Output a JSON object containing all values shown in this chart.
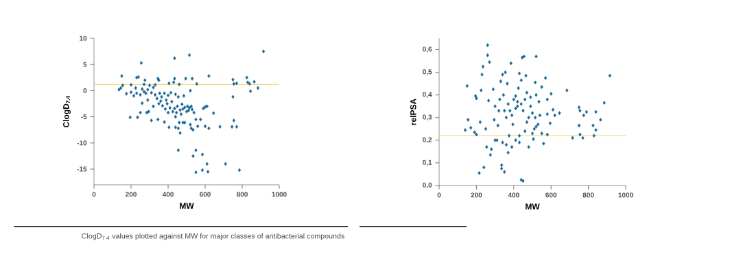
{
  "chart_data": [
    {
      "type": "scatter",
      "xlabel": "MW",
      "ylabel": "ClogD$_{7.4}$",
      "xlim": [
        0,
        1000
      ],
      "ylim": [
        -18,
        10
      ],
      "xticks": [
        0,
        200,
        400,
        600,
        800,
        1000
      ],
      "yticks": [
        -15,
        -10,
        -5,
        0,
        5,
        10
      ],
      "marker": "diamond",
      "color": "#1c6796",
      "x": [
        915,
        515,
        435,
        255,
        620,
        150,
        240,
        230,
        275,
        345,
        350,
        435,
        495,
        530,
        750,
        755,
        770,
        825,
        830,
        865,
        840,
        845,
        885,
        750,
        755,
        745,
        770,
        680,
        645,
        610,
        600,
        590,
        620,
        600,
        575,
        560,
        550,
        540,
        535,
        525,
        520,
        480,
        460,
        455,
        440,
        465,
        405,
        380,
        345,
        310,
        295,
        285,
        250,
        235,
        195,
        455,
        550,
        535,
        585,
        610,
        710,
        550,
        585,
        615,
        785,
        555,
        145,
        135,
        155,
        175,
        200,
        215,
        225,
        230,
        250,
        260,
        270,
        280,
        290,
        300,
        310,
        320,
        330,
        340,
        350,
        355,
        365,
        370,
        380,
        385,
        390,
        395,
        400,
        405,
        410,
        415,
        420,
        425,
        430,
        435,
        440,
        445,
        450,
        455,
        460,
        465,
        470,
        475,
        480,
        485,
        490,
        500,
        505,
        510,
        515,
        520,
        525,
        530,
        260,
        290,
        320,
        330,
        270,
        200,
        440,
        490,
        400,
        360
      ],
      "values": [
        7.5,
        6.8,
        6.2,
        5.3,
        2.8,
        2.8,
        2.6,
        2.5,
        2.0,
        2.3,
        2.0,
        2.3,
        2.3,
        2.3,
        2.1,
        1.3,
        1.4,
        2.5,
        1.6,
        1.7,
        1.3,
        -0.1,
        0.5,
        -1.2,
        -5.7,
        -6.9,
        -6.9,
        -6.9,
        -4.3,
        -3.0,
        -3.1,
        -3.4,
        -7.2,
        -6.8,
        -5.5,
        -6.8,
        -5.5,
        -4.2,
        -7.5,
        -7.2,
        -6.5,
        -6.1,
        -6.1,
        -7.2,
        -7.0,
        -8.1,
        -7.0,
        -6.0,
        -5.5,
        -5.7,
        -4.0,
        -4.2,
        -4.2,
        -5.1,
        -5.1,
        -11.4,
        -11.4,
        -12.5,
        -12.2,
        -14.0,
        -14.0,
        -15.6,
        -15.2,
        -15.5,
        -15.2,
        1.3,
        0.5,
        0.2,
        1.0,
        -0.6,
        -0.3,
        -1.0,
        0.5,
        -0.5,
        -0.8,
        0.3,
        -0.2,
        -0.5,
        0.2,
        1.0,
        -0.4,
        0.6,
        -0.8,
        -1.5,
        -2.5,
        -0.5,
        -1.2,
        -2.9,
        -0.5,
        -3.5,
        -1.8,
        -2.5,
        -0.9,
        1.4,
        -3.3,
        -0.4,
        -2.1,
        -4.0,
        1.6,
        -3.4,
        -0.7,
        -4.2,
        -3.0,
        -1.2,
        1.2,
        -3.7,
        -4.5,
        -2.6,
        -3.5,
        -1.0,
        -3.2,
        -4.0,
        -3.0,
        -3.8,
        -3.3,
        0.0,
        -3.0,
        -3.6,
        -2.4,
        -1.8,
        -3.0,
        1.1,
        1.2,
        1.1,
        -5.0,
        -6.1,
        -4.2,
        -2.0
      ],
      "ref_lines": [
        {
          "axis": "y",
          "value": 1.2,
          "color": "#f0d060"
        }
      ],
      "annotations": [
        "ClogD$_{7.4}$ values plotted against MW for major classes of antibacterial compounds"
      ]
    },
    {
      "type": "scatter",
      "xlabel": "MW",
      "ylabel": "relPSA",
      "xlim": [
        0,
        1000
      ],
      "ylim": [
        0,
        0.65
      ],
      "xticks": [
        0,
        200,
        400,
        600,
        800,
        1000
      ],
      "yticks": [
        {
          "value": 0,
          "label": "0,0"
        },
        {
          "value": 0.1,
          "label": "0,1"
        },
        {
          "value": 0.2,
          "label": "0,2"
        },
        {
          "value": 0.3,
          "label": "0,3"
        },
        {
          "value": 0.4,
          "label": "0,4"
        },
        {
          "value": 0.5,
          "label": "0,5"
        },
        {
          "value": 0.6,
          "label": "0,6"
        }
      ],
      "marker": "diamond",
      "color": "#1c6796",
      "x": [
        915,
        885,
        865,
        840,
        840,
        825,
        830,
        790,
        775,
        770,
        750,
        755,
        750,
        755,
        715,
        685,
        645,
        620,
        610,
        600,
        595,
        580,
        580,
        580,
        570,
        560,
        550,
        550,
        540,
        535,
        520,
        515,
        520,
        515,
        510,
        505,
        500,
        490,
        480,
        470,
        465,
        455,
        445,
        450,
        440,
        430,
        440,
        425,
        420,
        430,
        410,
        400,
        395,
        390,
        385,
        380,
        375,
        370,
        365,
        360,
        355,
        350,
        345,
        340,
        335,
        335,
        330,
        325,
        320,
        315,
        310,
        300,
        295,
        290,
        280,
        275,
        270,
        265,
        260,
        260,
        255,
        250,
        240,
        235,
        230,
        225,
        220,
        215,
        200,
        195,
        200,
        190,
        170,
        150,
        155,
        140,
        300,
        340,
        360,
        410,
        430,
        460,
        470,
        480,
        490,
        500,
        520,
        530,
        410,
        420,
        440,
        450,
        460,
        390,
        370,
        350
      ],
      "values": [
        0.485,
        0.365,
        0.29,
        0.325,
        0.245,
        0.265,
        0.22,
        0.325,
        0.31,
        0.21,
        0.345,
        0.33,
        0.265,
        0.225,
        0.21,
        0.42,
        0.32,
        0.31,
        0.335,
        0.405,
        0.275,
        0.38,
        0.315,
        0.225,
        0.475,
        0.185,
        0.435,
        0.23,
        0.31,
        0.37,
        0.57,
        0.455,
        0.4,
        0.3,
        0.25,
        0.205,
        0.32,
        0.39,
        0.17,
        0.41,
        0.485,
        0.57,
        0.565,
        0.02,
        0.025,
        0.495,
        0.465,
        0.43,
        0.35,
        0.19,
        0.395,
        0.38,
        0.27,
        0.17,
        0.54,
        0.33,
        0.22,
        0.145,
        0.45,
        0.3,
        0.5,
        0.06,
        0.4,
        0.49,
        0.09,
        0.075,
        0.46,
        0.38,
        0.33,
        0.265,
        0.2,
        0.35,
        0.29,
        0.425,
        0.16,
        0.135,
        0.545,
        0.375,
        0.62,
        0.575,
        0.17,
        0.25,
        0.08,
        0.525,
        0.49,
        0.42,
        0.28,
        0.055,
        0.385,
        0.395,
        0.225,
        0.235,
        0.255,
        0.44,
        0.29,
        0.245,
        0.2,
        0.19,
        0.18,
        0.2,
        0.22,
        0.24,
        0.28,
        0.3,
        0.35,
        0.23,
        0.26,
        0.27,
        0.34,
        0.37,
        0.36,
        0.33,
        0.38,
        0.31,
        0.36,
        0.33
      ],
      "ref_lines": [
        {
          "axis": "y",
          "value": 0.22,
          "color": "#f0d060"
        }
      ]
    }
  ]
}
